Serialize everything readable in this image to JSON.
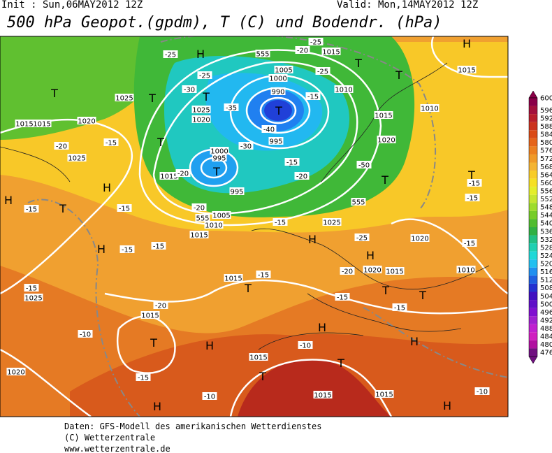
{
  "header": {
    "init": "Init : Sun,06MAY2012 12Z",
    "valid": "Valid: Mon,14MAY2012 12Z",
    "title": "500 hPa Geopot.(gpdm), T (C) und Bodendr. (hPa)"
  },
  "map_labels": [
    "H",
    "H",
    "T",
    "T",
    "T",
    "T",
    "T",
    "T",
    "T",
    "T",
    "H",
    "H",
    "T",
    "T",
    "T",
    "H",
    "H",
    "H",
    "T",
    "T",
    "T",
    "H",
    "T",
    "H",
    "H",
    "T",
    "T",
    "H",
    "H",
    "T",
    "1015",
    "1005",
    "1000",
    "990",
    "1010",
    "1025",
    "1025",
    "1020",
    "1015",
    "1020",
    "1020",
    "1015",
    "1010",
    "1000",
    "995",
    "995",
    "1015",
    "1005",
    "1010",
    "1015",
    "1025",
    "1020",
    "1015",
    "1020",
    "1010",
    "1015",
    "1025",
    "1015",
    "1020",
    "1015",
    "1015",
    "1015",
    "1015",
    "995",
    "1025",
    "1015",
    "-25",
    "-25",
    "-30",
    "-35",
    "-30",
    "-25",
    "-25",
    "-20",
    "-15",
    "-40",
    "-20",
    "-15",
    "-20",
    "-20",
    "-15",
    "-50",
    "-15",
    "-15",
    "-15",
    "-15",
    "-15",
    "-15",
    "-15",
    "-20",
    "-25",
    "-15",
    "-15",
    "-20",
    "-10",
    "-15",
    "-10",
    "-10",
    "-10",
    "-15",
    "-20",
    "-15",
    "-15",
    "555",
    "555",
    "555"
  ],
  "colorbar": {
    "values": [
      600,
      596,
      592,
      588,
      584,
      580,
      576,
      572,
      568,
      564,
      560,
      556,
      552,
      548,
      544,
      540,
      536,
      532,
      528,
      524,
      520,
      516,
      512,
      508,
      504,
      500,
      496,
      492,
      488,
      484,
      480,
      476
    ],
    "colors": [
      "#8a0048",
      "#a3103c",
      "#b81e2c",
      "#cb321e",
      "#da4a16",
      "#e5641a",
      "#ec8020",
      "#f09a28",
      "#f4b432",
      "#f8cc28",
      "#f6e024",
      "#e4ee2a",
      "#c6e630",
      "#9edc2c",
      "#76cc28",
      "#50bc30",
      "#30b044",
      "#22c084",
      "#20d0b2",
      "#20d8d8",
      "#22c0f0",
      "#2090f0",
      "#2060e0",
      "#2432d0",
      "#4010c0",
      "#6010c8",
      "#8010d0",
      "#a020d0",
      "#c020d0",
      "#d020c0",
      "#b010a0",
      "#701080"
    ]
  },
  "footer": [
    "Daten: GFS-Modell des amerikanischen Wetterdienstes",
    "(C) Wetterzentrale",
    "www.wetterzentrale.de"
  ]
}
